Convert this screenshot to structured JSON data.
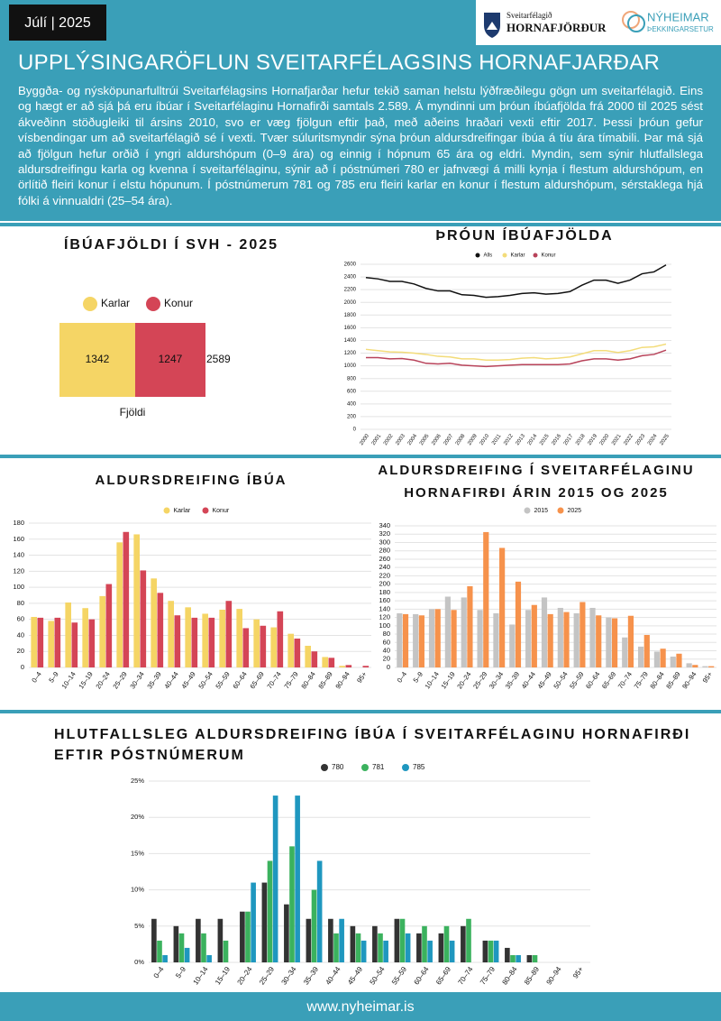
{
  "header": {
    "date": "Júlí | 2025",
    "logo_left": [
      "Sveitarfélagið",
      "HORNAFJÖRÐUR"
    ],
    "logo_right": [
      "NÝHEIMAR",
      "ÞEKKINGARSETUR"
    ],
    "title": "UPPLÝSINGARÖFLUN SVEITARFÉLAGSINS HORNAFJARÐAR",
    "text": "Byggða- og nýsköpunarfulltrúi Sveitarfélagsins Hornafjarðar hefur tekið saman helstu lýðfræðilegu gögn um sveitarfélagið. Eins og hægt er að sjá þá eru íbúar í Sveitarfélaginu Hornafirði samtals 2.589. Á myndinni um þróun íbúafjölda frá 2000 til 2025 sést ákveðinn stöðugleiki til ársins 2010, svo er væg fjölgun eftir það, með aðeins hraðari vexti eftir 2017. Þessi þróun gefur vísbendingar um að sveitarfélagið sé í vexti. Tvær súluritsmyndir sýna þróun aldursdreifingar íbúa á tíu ára tímabili. Þar má sjá að fjölgun hefur orðið í yngri aldurshópum (0–9 ára) og einnig í hópnum 65 ára og eldri. Myndin, sem sýnir hlutfallslega aldursdreifingu karla og kvenna í sveitarfélaginu, sýnir að í póstnúmeri 780 er jafnvægi á milli kynja í flestum aldurshópum, en örlítið fleiri konur í elstu hópunum. Í póstnúmerum 781 og 785 eru fleiri karlar en konur í flestum aldurshópum, sérstaklega hjá fólki á vinnualdri (25–54 ára)."
  },
  "footer": "www.nyheimar.is",
  "chart_data": [
    {
      "type": "stacked_bar_h",
      "title": [
        "ÍBÚAFJÖLDI Í SVH - 2025"
      ],
      "categories": [
        "Fjöldi"
      ],
      "series": [
        {
          "name": "Karlar",
          "color": "#f5d565",
          "values": [
            1342
          ]
        },
        {
          "name": "Konur",
          "color": "#d44556",
          "values": [
            1247
          ]
        }
      ],
      "total": 2589
    },
    {
      "type": "line",
      "title": [
        "ÞRÓUN ÍBÚAFJÖLDA"
      ],
      "x": [
        2000,
        2001,
        2002,
        2003,
        2004,
        2005,
        2006,
        2007,
        2008,
        2009,
        2010,
        2011,
        2012,
        2013,
        2014,
        2015,
        2016,
        2017,
        2018,
        2019,
        2020,
        2021,
        2022,
        2023,
        2024,
        2025
      ],
      "series": [
        {
          "name": "Alls",
          "color": "#111111",
          "values": [
            2390,
            2370,
            2330,
            2330,
            2290,
            2220,
            2180,
            2180,
            2120,
            2110,
            2080,
            2090,
            2110,
            2140,
            2150,
            2130,
            2140,
            2170,
            2270,
            2350,
            2350,
            2300,
            2350,
            2450,
            2480,
            2589
          ]
        },
        {
          "name": "Karlar",
          "color": "#f3dc7a",
          "values": [
            1260,
            1240,
            1220,
            1215,
            1200,
            1180,
            1150,
            1140,
            1110,
            1110,
            1090,
            1090,
            1100,
            1120,
            1130,
            1110,
            1120,
            1140,
            1190,
            1240,
            1240,
            1210,
            1240,
            1290,
            1300,
            1342
          ]
        },
        {
          "name": "Konur",
          "color": "#b8435a",
          "values": [
            1130,
            1130,
            1110,
            1115,
            1090,
            1040,
            1030,
            1040,
            1010,
            1000,
            990,
            1000,
            1010,
            1020,
            1020,
            1020,
            1020,
            1030,
            1080,
            1110,
            1110,
            1090,
            1110,
            1160,
            1180,
            1247
          ]
        }
      ],
      "ylim": [
        0,
        2600
      ],
      "yticks": [
        0,
        200,
        400,
        600,
        800,
        1000,
        1200,
        1400,
        1600,
        1800,
        2000,
        2200,
        2400,
        2600
      ],
      "grid": true
    },
    {
      "type": "bar",
      "title": [
        "ALDURSDREIFING ÍBÚA"
      ],
      "categories": [
        "0–4",
        "5–9",
        "10–14",
        "15–19",
        "20–24",
        "25–29",
        "30–34",
        "35–39",
        "40–44",
        "45–49",
        "50–54",
        "55–59",
        "60–64",
        "65–69",
        "70–74",
        "75–79",
        "80–84",
        "85–89",
        "90–94",
        "95+"
      ],
      "series": [
        {
          "name": "Karlar",
          "color": "#f5d565",
          "values": [
            63,
            58,
            81,
            74,
            89,
            156,
            166,
            111,
            83,
            75,
            67,
            72,
            73,
            60,
            50,
            42,
            27,
            13,
            2,
            0
          ]
        },
        {
          "name": "Konur",
          "color": "#d44556",
          "values": [
            62,
            62,
            56,
            60,
            104,
            169,
            121,
            93,
            65,
            62,
            62,
            83,
            49,
            52,
            70,
            36,
            20,
            12,
            3,
            2
          ]
        }
      ],
      "ylim": [
        0,
        180
      ],
      "yticks": [
        0,
        20,
        40,
        60,
        80,
        100,
        120,
        140,
        160,
        180
      ],
      "grid": true
    },
    {
      "type": "bar",
      "title": [
        "ALDURSDREIFING Í SVEITARFÉLAGINU",
        "HORNAFIRÐI ÁRIN 2015 OG 2025"
      ],
      "categories": [
        "0–4",
        "5–9",
        "10–14",
        "15–19",
        "20–24",
        "25–29",
        "30–34",
        "35–39",
        "40–44",
        "45–49",
        "50–54",
        "55–59",
        "60–64",
        "65–69",
        "70–74",
        "75–79",
        "80–84",
        "85–89",
        "90–94",
        "95+"
      ],
      "series": [
        {
          "name": "2015",
          "color": "#c4c4c4",
          "values": [
            130,
            128,
            140,
            170,
            168,
            138,
            130,
            103,
            138,
            168,
            143,
            130,
            143,
            120,
            72,
            50,
            38,
            26,
            10,
            3
          ]
        },
        {
          "name": "2025",
          "color": "#f6924c",
          "values": [
            128,
            125,
            140,
            138,
            195,
            325,
            287,
            206,
            150,
            128,
            133,
            157,
            125,
            118,
            124,
            78,
            45,
            33,
            6,
            3
          ]
        }
      ],
      "ylim": [
        0,
        340
      ],
      "yticks": [
        0,
        20,
        40,
        60,
        80,
        100,
        120,
        140,
        160,
        180,
        200,
        220,
        240,
        260,
        280,
        300,
        320,
        340
      ],
      "grid": true
    },
    {
      "type": "bar",
      "title": [
        "HLUTFALLSLEG ALDURSDREIFING ÍBÚA Í SVEITARFÉLAGINU HORNAFIRÐI",
        "EFTIR PÓSTNÚMERUM"
      ],
      "categories": [
        "0–4",
        "5–9",
        "10–14",
        "15–19",
        "20–24",
        "25–29",
        "30–34",
        "35–39",
        "40–44",
        "45–49",
        "50–54",
        "55–59",
        "60–64",
        "65–69",
        "70–74",
        "75–79",
        "80–84",
        "85–89",
        "90–94",
        "95+"
      ],
      "series": [
        {
          "name": "780",
          "color": "#333333",
          "values": [
            6,
            5,
            6,
            6,
            7,
            11,
            8,
            6,
            6,
            5,
            5,
            6,
            4,
            4,
            5,
            3,
            2,
            1,
            0,
            0
          ]
        },
        {
          "name": "781",
          "color": "#3bb25e",
          "values": [
            3,
            4,
            4,
            3,
            7,
            14,
            16,
            10,
            4,
            4,
            4,
            6,
            5,
            5,
            6,
            3,
            1,
            1,
            0,
            0
          ]
        },
        {
          "name": "785",
          "color": "#1f97bf",
          "values": [
            1,
            2,
            1,
            0,
            11,
            23,
            23,
            14,
            6,
            3,
            3,
            4,
            3,
            3,
            0,
            3,
            1,
            0,
            0,
            0
          ]
        }
      ],
      "ylim": [
        0,
        25
      ],
      "yticks": [
        {
          "value": 0,
          "label": "0%"
        },
        {
          "value": 5,
          "label": "5%"
        },
        {
          "value": 10,
          "label": "10%"
        },
        {
          "value": 15,
          "label": "15%"
        },
        {
          "value": 20,
          "label": "20%"
        },
        {
          "value": 25,
          "label": "25%"
        }
      ],
      "grid": true
    }
  ]
}
